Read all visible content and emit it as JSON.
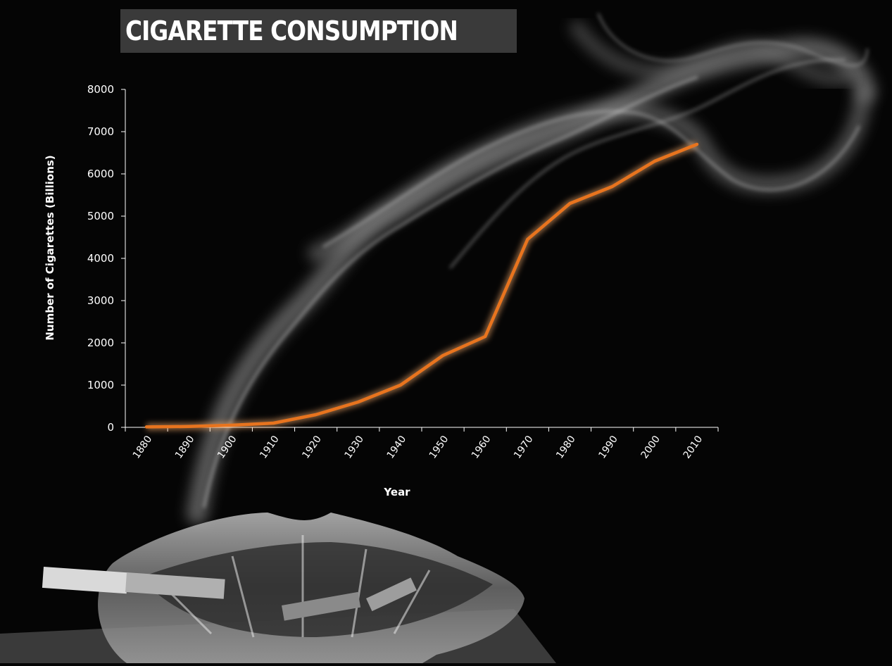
{
  "page_title": "CIGARETTE CONSUMPTION",
  "colors": {
    "background": "#050505",
    "line": "#e8741e",
    "axis": "#ffffff",
    "title_bg": "#3a3a3a"
  },
  "chart_data": {
    "type": "line",
    "title": "CIGARETTE CONSUMPTION",
    "xlabel": "Year",
    "ylabel": "Number of Cigarettes (Billions)",
    "categories": [
      "1880",
      "1890",
      "1900",
      "1910",
      "1920",
      "1930",
      "1940",
      "1950",
      "1960",
      "1970",
      "1980",
      "1990",
      "2000",
      "2010"
    ],
    "yticks": [
      "0",
      "1000",
      "2000",
      "3000",
      "4000",
      "5000",
      "6000",
      "7000",
      "8000"
    ],
    "ylim": [
      0,
      8000
    ],
    "grid": false,
    "series": [
      {
        "values": [
          10,
          20,
          50,
          100,
          300,
          600,
          1000,
          1700,
          2150,
          4450,
          5300,
          5700,
          6300,
          6700
        ]
      }
    ]
  }
}
